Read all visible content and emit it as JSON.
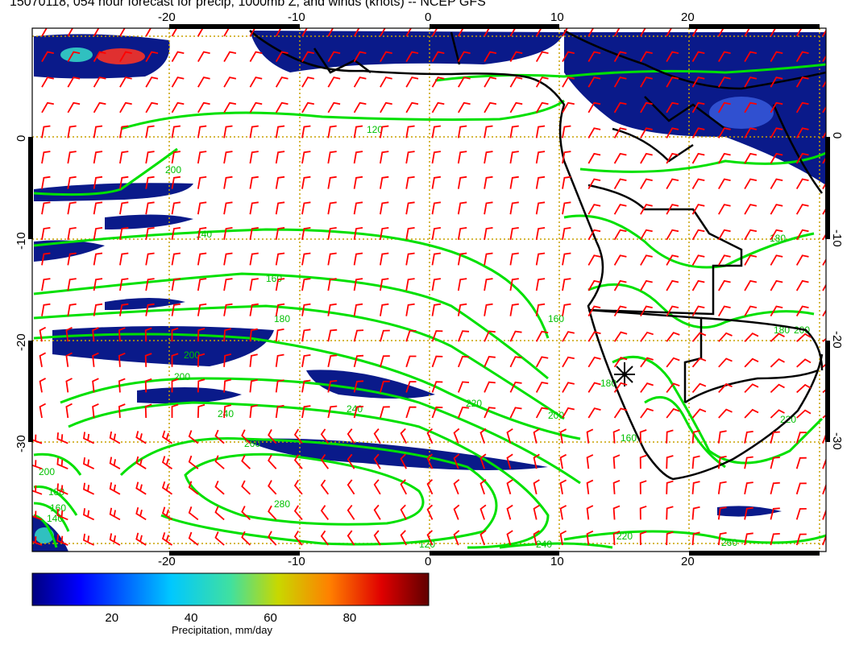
{
  "title": "15070118, 054 hour forecast for precip, 1000mb Z, and winds (knots) -- NCEP GFS",
  "map": {
    "lon_range": [
      -31,
      30
    ],
    "lat_range": [
      -40,
      11
    ],
    "lon_ticks": [
      "-20",
      "-10",
      "0",
      "10",
      "20"
    ],
    "lat_ticks": [
      "0",
      "-10",
      "-20",
      "-30"
    ],
    "gridlines": true,
    "colors": {
      "contours": "#00e000",
      "wind_barbs": "#ff0000",
      "coastline": "#000000",
      "grid": "#c8a000",
      "precip_dark": "#0a1a8a"
    },
    "contour_labels": [
      "120",
      "140",
      "160",
      "180",
      "200",
      "220",
      "240",
      "260",
      "280",
      "180",
      "160",
      "140",
      "200",
      "200",
      "200",
      "220",
      "240",
      "160",
      "180",
      "200",
      "220",
      "240",
      "260",
      "180",
      "200",
      "160",
      "180",
      "120"
    ],
    "marker": "station-asterisk"
  },
  "colorbar": {
    "label": "Precipitation, mm/day",
    "ticks": [
      "20",
      "40",
      "60",
      "80"
    ],
    "range": [
      0,
      100
    ],
    "tick_values": [
      20,
      40,
      60,
      80
    ]
  }
}
